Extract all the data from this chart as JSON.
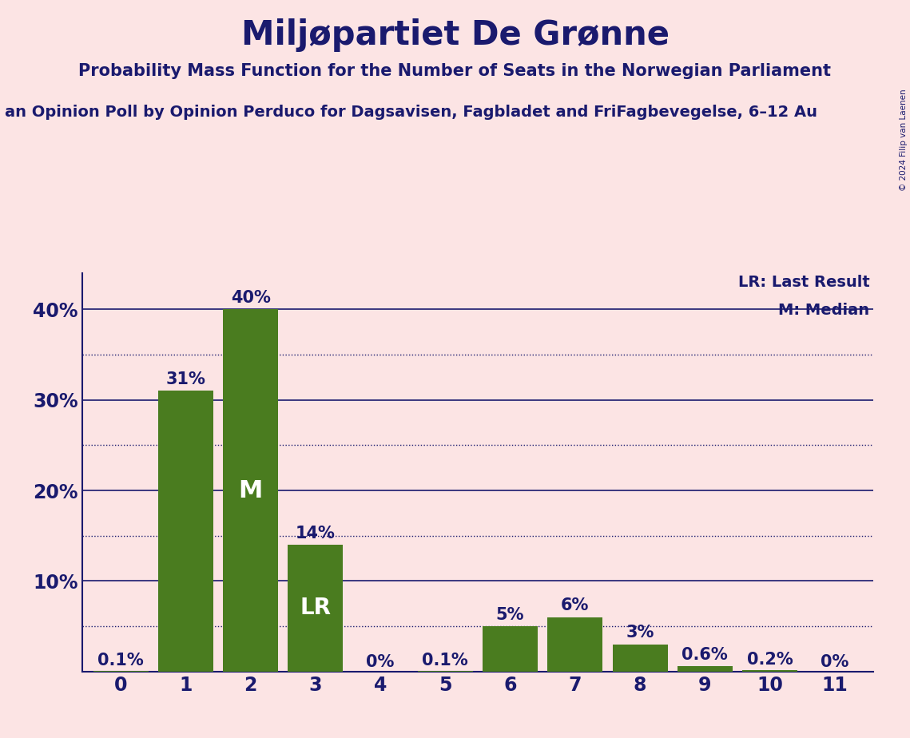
{
  "title": "Miljøpartiet De Grønne",
  "subtitle": "Probability Mass Function for the Number of Seats in the Norwegian Parliament",
  "source_line": "an Opinion Poll by Opinion Perduco for Dagsavisen, Fagbladet and FriFagbevegelse, 6–12 Au",
  "copyright": "© 2024 Filip van Laenen",
  "categories": [
    0,
    1,
    2,
    3,
    4,
    5,
    6,
    7,
    8,
    9,
    10,
    11
  ],
  "values": [
    0.1,
    31,
    40,
    14,
    0,
    0.1,
    5,
    6,
    3,
    0.6,
    0.2,
    0
  ],
  "bar_color": "#4a7c1f",
  "background_color": "#fce4e4",
  "title_color": "#1a1a6e",
  "text_color": "#1a1a6e",
  "bar_labels": [
    "0.1%",
    "31%",
    "40%",
    "14%",
    "0%",
    "0.1%",
    "5%",
    "6%",
    "3%",
    "0.6%",
    "0.2%",
    "0%"
  ],
  "median_bar": 2,
  "lr_bar": 3,
  "ylim": [
    0,
    44
  ],
  "yticks": [
    10,
    20,
    30,
    40
  ],
  "ytick_labels": [
    "10%",
    "20%",
    "30%",
    "40%"
  ],
  "solid_line_ticks": [
    10,
    20,
    30,
    40
  ],
  "dotted_line_ticks": [
    5,
    15,
    25,
    35
  ],
  "legend_lr": "LR: Last Result",
  "legend_m": "M: Median",
  "title_fontsize": 30,
  "subtitle_fontsize": 15,
  "source_fontsize": 14,
  "tick_fontsize": 17,
  "label_fontsize": 15,
  "legend_fontsize": 14
}
